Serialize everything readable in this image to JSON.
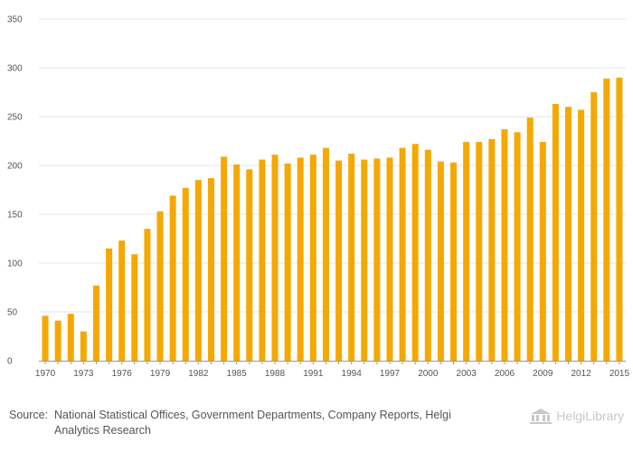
{
  "chart_data": {
    "type": "bar",
    "categories": [
      "1970",
      "1971",
      "1972",
      "1973",
      "1974",
      "1975",
      "1976",
      "1977",
      "1978",
      "1979",
      "1980",
      "1981",
      "1982",
      "1983",
      "1984",
      "1985",
      "1986",
      "1987",
      "1988",
      "1989",
      "1990",
      "1991",
      "1992",
      "1993",
      "1994",
      "1995",
      "1996",
      "1997",
      "1998",
      "1999",
      "2000",
      "2001",
      "2002",
      "2003",
      "2004",
      "2005",
      "2006",
      "2007",
      "2008",
      "2009",
      "2010",
      "2011",
      "2012",
      "2013",
      "2014",
      "2015"
    ],
    "values": [
      46,
      41,
      48,
      30,
      77,
      115,
      123,
      109,
      135,
      153,
      169,
      177,
      185,
      187,
      209,
      201,
      196,
      206,
      211,
      202,
      208,
      211,
      218,
      205,
      212,
      206,
      207,
      208,
      218,
      222,
      216,
      204,
      203,
      224,
      224,
      227,
      237,
      234,
      249,
      224,
      263,
      260,
      257,
      275,
      289,
      290
    ],
    "x_tick_labels": [
      "1970",
      "1973",
      "1976",
      "1979",
      "1982",
      "1985",
      "1988",
      "1991",
      "1994",
      "1997",
      "2000",
      "2003",
      "2006",
      "2009",
      "2012",
      "2015"
    ],
    "y_ticks": [
      0,
      50,
      100,
      150,
      200,
      250,
      300,
      350
    ],
    "ylim": [
      0,
      350
    ],
    "title": "",
    "xlabel": "",
    "ylabel": "",
    "grid": true,
    "color": "#f5a800"
  },
  "footer": {
    "source_label": "Source:",
    "source_text": "National Statistical Offices, Government Departments, Company Reports, Helgi Analytics Research",
    "logo_text": "HelgiLibrary"
  }
}
